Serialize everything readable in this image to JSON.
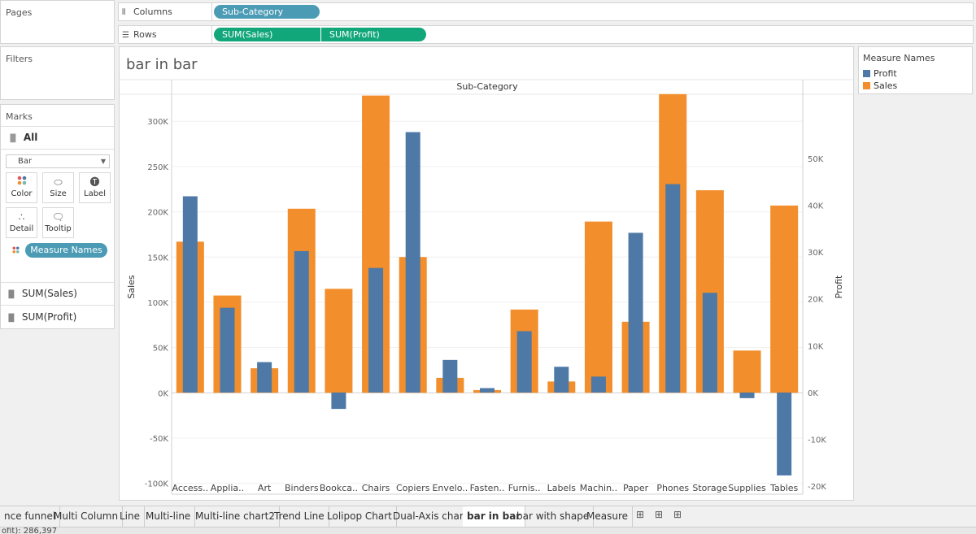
{
  "shelves": {
    "pages": "Pages",
    "filters": "Filters",
    "columns_label": "Columns",
    "rows_label": "Rows",
    "columns_pill": "Sub-Category",
    "rows_pill_1": "SUM(Sales)",
    "rows_pill_2": "SUM(Profit)"
  },
  "marks": {
    "title": "Marks",
    "all": "All",
    "type": "Bar",
    "buttons": {
      "color": "Color",
      "size": "Size",
      "label": "Label",
      "detail": "Detail",
      "tooltip": "Tooltip"
    },
    "color_pill": "Measure Names",
    "field_1": "SUM(Sales)",
    "field_2": "SUM(Profit)"
  },
  "legend": {
    "title": "Measure Names",
    "items": [
      {
        "label": "Profit",
        "color": "#4e79a7"
      },
      {
        "label": "Sales",
        "color": "#f28e2b"
      }
    ]
  },
  "sheet_title": "bar in bar",
  "tabs": [
    "nce funnel",
    "Multi Column",
    "Line",
    "Multi-line",
    "Multi-line chart2",
    "Trend Line",
    "Lolipop Chart",
    "Dual-Axis chart",
    "bar in bar",
    "bar with shape",
    "Measure"
  ],
  "active_tab": "bar in bar",
  "status": "ofit): 286,397",
  "chart_data": {
    "type": "bar",
    "title": "Sub-Category",
    "xlabel": "",
    "ylabel": "Sales",
    "y2label": "Profit",
    "categories": [
      "Access..",
      "Applia..",
      "Art",
      "Binders",
      "Bookca..",
      "Chairs",
      "Copiers",
      "Envelo..",
      "Fasten..",
      "Furnis..",
      "Labels",
      "Machin..",
      "Paper",
      "Phones",
      "Storage",
      "Supplies",
      "Tables"
    ],
    "ylim": [
      -112000,
      346000
    ],
    "y2lim": [
      -21700,
      66800
    ],
    "yticks": [
      -100000,
      -50000,
      0,
      50000,
      100000,
      150000,
      200000,
      250000,
      300000
    ],
    "yticklabels": [
      "-100K",
      "-50K",
      "0K",
      "50K",
      "100K",
      "150K",
      "200K",
      "250K",
      "300K"
    ],
    "y2ticks": [
      -20000,
      -10000,
      0,
      10000,
      20000,
      30000,
      40000,
      50000
    ],
    "y2ticklabels": [
      "-20K",
      "-10K",
      "0K",
      "10K",
      "20K",
      "30K",
      "40K",
      "50K"
    ],
    "series": [
      {
        "name": "Sales",
        "axis": "left",
        "color": "#f28e2b",
        "values": [
          167000,
          107500,
          27100,
          203400,
          114900,
          328400,
          150000,
          16500,
          3000,
          92000,
          12500,
          189200,
          78500,
          330000,
          223800,
          46700,
          206900
        ]
      },
      {
        "name": "Profit",
        "axis": "right",
        "color": "#4e79a7",
        "values": [
          41900,
          18100,
          6500,
          30200,
          -3500,
          26600,
          55600,
          6960,
          950,
          13100,
          5500,
          3400,
          34100,
          44500,
          21300,
          -1200,
          -17700
        ]
      }
    ],
    "grid": true,
    "legend": "right-panel"
  }
}
